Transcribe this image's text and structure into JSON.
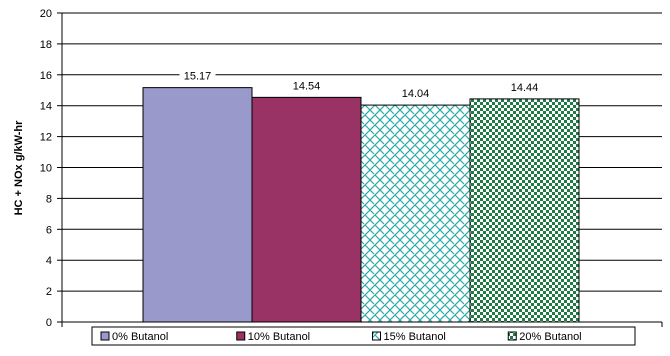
{
  "chart_data": {
    "type": "bar",
    "categories": [
      "0% Butanol",
      "10% Butanol",
      "15% Butanol",
      "20% Butanol"
    ],
    "values": [
      15.17,
      14.54,
      14.04,
      14.44
    ],
    "data_labels": [
      "15.17",
      "14.54",
      "14.04",
      "14.44"
    ],
    "title": "",
    "xlabel": "",
    "ylabel": "HC + NOx g/kW-hr",
    "ylim": [
      0,
      20
    ],
    "yticks": [
      0,
      2,
      4,
      6,
      8,
      10,
      12,
      14,
      16,
      18,
      20
    ],
    "grid": true,
    "legend_position": "bottom",
    "series": [
      {
        "name": "0% Butanol",
        "color": "#9999cc",
        "pattern": "solid"
      },
      {
        "name": "10% Butanol",
        "color": "#993366",
        "pattern": "solid"
      },
      {
        "name": "15% Butanol",
        "color": "#2aa8a8",
        "pattern": "brick"
      },
      {
        "name": "20% Butanol",
        "color": "#1e7a42",
        "pattern": "dots"
      }
    ]
  }
}
